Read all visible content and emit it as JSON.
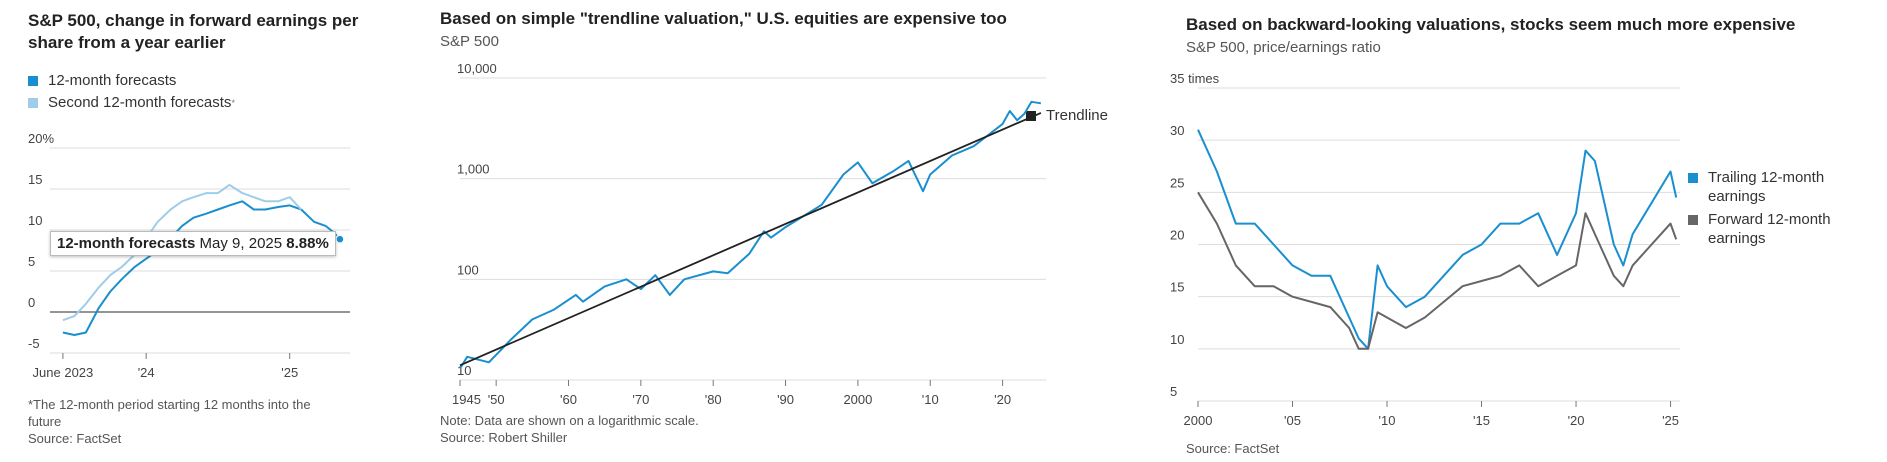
{
  "colors": {
    "primary": "#1a8fd0",
    "light": "#9fcde9",
    "trend": "#222222",
    "forward": "#666666",
    "grid": "#dddddd"
  },
  "chart1": {
    "title_line1": "S&P 500, change in forward earnings per",
    "title_line2": "share from a year earlier",
    "legend": [
      {
        "label": "12-month forecasts"
      },
      {
        "label": "Second 12-month forecasts",
        "mark": "*"
      }
    ],
    "tooltip": {
      "series": "12-month forecasts",
      "date": "May 9, 2025",
      "value": "8.88%"
    },
    "footnote_line1": "*The 12-month period starting 12 months into the",
    "footnote_line2": "future",
    "source": "Source: FactSet"
  },
  "chart2": {
    "title": "Based on simple \"trendline valuation,\" U.S. equities are expensive too",
    "subtitle": "S&P 500",
    "legend": [
      {
        "label": "Trendline"
      }
    ],
    "note": "Note: Data are shown on a logarithmic scale.",
    "source": "Source: Robert Shiller"
  },
  "chart3": {
    "title": "Based on backward-looking valuations, stocks seem much more expensive",
    "subtitle": "S&P 500, price/earnings ratio",
    "legend": [
      {
        "label_line1": "Trailing 12-month",
        "label_line2": "earnings"
      },
      {
        "label_line1": "Forward 12-month",
        "label_line2": "earnings"
      }
    ],
    "source": "Source: FactSet"
  },
  "chart_data": [
    {
      "type": "line",
      "title": "S&P 500, change in forward earnings per share from a year earlier",
      "yunit": "%",
      "ylim": [
        -5,
        20
      ],
      "yticks": [
        {
          "v": 20,
          "label": "20%"
        },
        {
          "v": 15,
          "label": "15"
        },
        {
          "v": 10,
          "label": "10"
        },
        {
          "v": 5,
          "label": "5"
        },
        {
          "v": 0,
          "label": "0"
        },
        {
          "v": -5,
          "label": "-5"
        }
      ],
      "xlim": [
        2023.33,
        2025.42
      ],
      "xticks": [
        {
          "v": 2023.42,
          "label": "June 2023"
        },
        {
          "v": 2024.0,
          "label": "'24"
        },
        {
          "v": 2025.0,
          "label": "'25"
        }
      ],
      "series": [
        {
          "name": "12-month forecasts",
          "x": [
            2023.42,
            2023.5,
            2023.58,
            2023.67,
            2023.75,
            2023.83,
            2023.92,
            2024.0,
            2024.08,
            2024.17,
            2024.25,
            2024.33,
            2024.42,
            2024.5,
            2024.58,
            2024.67,
            2024.75,
            2024.83,
            2024.92,
            2025.0,
            2025.08,
            2025.17,
            2025.25,
            2025.3,
            2025.35
          ],
          "values": [
            -2.5,
            -2.8,
            -2.5,
            0.5,
            2.5,
            4.0,
            5.5,
            6.5,
            7.5,
            9.0,
            10.5,
            11.5,
            12.0,
            12.5,
            13.0,
            13.5,
            12.5,
            12.5,
            12.8,
            13.0,
            12.5,
            11.0,
            10.5,
            9.8,
            8.88
          ]
        },
        {
          "name": "Second 12-month forecasts",
          "x": [
            2023.42,
            2023.5,
            2023.58,
            2023.67,
            2023.75,
            2023.83,
            2023.92,
            2024.0,
            2024.08,
            2024.17,
            2024.25,
            2024.33,
            2024.42,
            2024.5,
            2024.58,
            2024.67,
            2024.75,
            2024.83,
            2024.92,
            2025.0,
            2025.08
          ],
          "values": [
            -1.0,
            -0.5,
            1.0,
            3.0,
            4.5,
            5.5,
            7.0,
            9.0,
            11.0,
            12.5,
            13.5,
            14.0,
            14.5,
            14.5,
            15.5,
            14.5,
            14.0,
            13.5,
            13.5,
            14.0,
            12.5
          ]
        }
      ]
    },
    {
      "type": "line",
      "title": "Based on simple \"trendline valuation,\" U.S. equities are expensive too",
      "yscale": "log",
      "ylim": [
        10,
        10000
      ],
      "yticks": [
        {
          "v": 10000,
          "label": "10,000"
        },
        {
          "v": 1000,
          "label": "1,000"
        },
        {
          "v": 100,
          "label": "100"
        },
        {
          "v": 10,
          "label": "10"
        }
      ],
      "xlim": [
        1945,
        2026
      ],
      "xticks": [
        {
          "v": 1945,
          "label": "1945"
        },
        {
          "v": 1950,
          "label": "'50"
        },
        {
          "v": 1960,
          "label": "'60"
        },
        {
          "v": 1970,
          "label": "'70"
        },
        {
          "v": 1980,
          "label": "'80"
        },
        {
          "v": 1990,
          "label": "'90"
        },
        {
          "v": 2000,
          "label": "2000"
        },
        {
          "v": 2010,
          "label": "'10"
        },
        {
          "v": 2020,
          "label": "'20"
        }
      ],
      "series": [
        {
          "name": "S&P 500",
          "x": [
            1945,
            1946,
            1949,
            1952,
            1955,
            1958,
            1961,
            1962,
            1965,
            1968,
            1970,
            1972,
            1974,
            1976,
            1980,
            1982,
            1985,
            1987,
            1988,
            1990,
            1995,
            1998,
            2000,
            2002,
            2005,
            2007,
            2009,
            2010,
            2013,
            2016,
            2018,
            2020,
            2021,
            2022,
            2023,
            2024,
            2025.3
          ],
          "values": [
            13,
            17,
            15,
            25,
            40,
            50,
            70,
            60,
            85,
            100,
            80,
            110,
            70,
            100,
            120,
            115,
            180,
            300,
            260,
            330,
            550,
            1100,
            1450,
            900,
            1200,
            1500,
            750,
            1100,
            1700,
            2100,
            2700,
            3500,
            4700,
            3800,
            4400,
            5800,
            5600
          ]
        },
        {
          "name": "Trendline",
          "x": [
            1945,
            2025.3
          ],
          "values": [
            14,
            4500
          ]
        }
      ]
    },
    {
      "type": "line",
      "title": "Based on backward-looking valuations, stocks seem much more expensive",
      "ylabel": "price/earnings ratio",
      "ylim": [
        5,
        35
      ],
      "yticks": [
        {
          "v": 35,
          "label": "35 times"
        },
        {
          "v": 30,
          "label": "30"
        },
        {
          "v": 25,
          "label": "25"
        },
        {
          "v": 20,
          "label": "20"
        },
        {
          "v": 15,
          "label": "15"
        },
        {
          "v": 10,
          "label": "10"
        },
        {
          "v": 5,
          "label": "5"
        }
      ],
      "xlim": [
        2000,
        2025.5
      ],
      "xticks": [
        {
          "v": 2000,
          "label": "2000"
        },
        {
          "v": 2005,
          "label": "'05"
        },
        {
          "v": 2010,
          "label": "'10"
        },
        {
          "v": 2015,
          "label": "'15"
        },
        {
          "v": 2020,
          "label": "'20"
        },
        {
          "v": 2025,
          "label": "'25"
        }
      ],
      "series": [
        {
          "name": "Trailing 12-month earnings",
          "x": [
            2000,
            2001,
            2002,
            2003,
            2004,
            2005,
            2006,
            2007,
            2008,
            2008.5,
            2009,
            2009.5,
            2010,
            2011,
            2012,
            2013,
            2014,
            2015,
            2016,
            2017,
            2018,
            2019,
            2020,
            2020.5,
            2021,
            2022,
            2022.5,
            2023,
            2024,
            2025,
            2025.3
          ],
          "values": [
            31,
            27,
            22,
            22,
            20,
            18,
            17,
            17,
            13,
            11,
            10,
            18,
            16,
            14,
            15,
            17,
            19,
            20,
            22,
            22,
            23,
            19,
            23,
            29,
            28,
            20,
            18,
            21,
            24,
            27,
            24.5
          ]
        },
        {
          "name": "Forward 12-month earnings",
          "x": [
            2000,
            2001,
            2002,
            2003,
            2004,
            2005,
            2006,
            2007,
            2008,
            2008.5,
            2009,
            2009.5,
            2010,
            2011,
            2012,
            2013,
            2014,
            2015,
            2016,
            2017,
            2018,
            2019,
            2020,
            2020.5,
            2021,
            2022,
            2022.5,
            2023,
            2024,
            2025,
            2025.3
          ],
          "values": [
            25,
            22,
            18,
            16,
            16,
            15,
            14.5,
            14,
            12,
            10,
            10,
            13.5,
            13,
            12,
            13,
            14.5,
            16,
            16.5,
            17,
            18,
            16,
            17,
            18,
            23,
            21,
            17,
            16,
            18,
            20,
            22,
            20.5
          ]
        }
      ]
    }
  ]
}
